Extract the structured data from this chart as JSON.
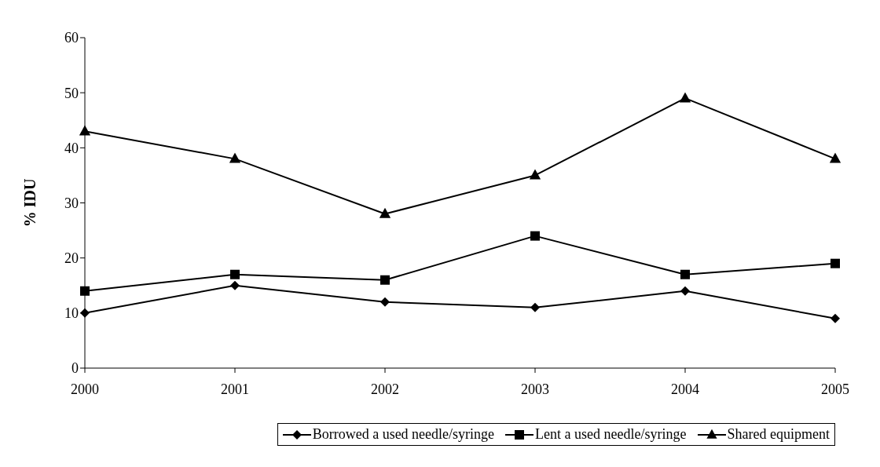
{
  "chart_data": {
    "type": "line",
    "ylabel": "% IDU",
    "categories": [
      "2000",
      "2001",
      "2002",
      "2003",
      "2004",
      "2005"
    ],
    "series": [
      {
        "name": "Borrowed a used needle/syringe",
        "color": "#000000",
        "marker": "diamond",
        "values": [
          10,
          15,
          12,
          11,
          14,
          9
        ]
      },
      {
        "name": "Lent a used needle/syringe",
        "color": "#000000",
        "marker": "square",
        "values": [
          14,
          17,
          16,
          24,
          17,
          19
        ]
      },
      {
        "name": "Shared equipment",
        "color": "#000000",
        "marker": "triangle",
        "values": [
          43,
          38,
          28,
          35,
          49,
          38
        ]
      }
    ],
    "ylim": [
      0,
      60
    ],
    "yticks": [
      0,
      10,
      20,
      30,
      40,
      50,
      60
    ],
    "grid": false,
    "legend": "bottom",
    "line_style": "solid"
  }
}
